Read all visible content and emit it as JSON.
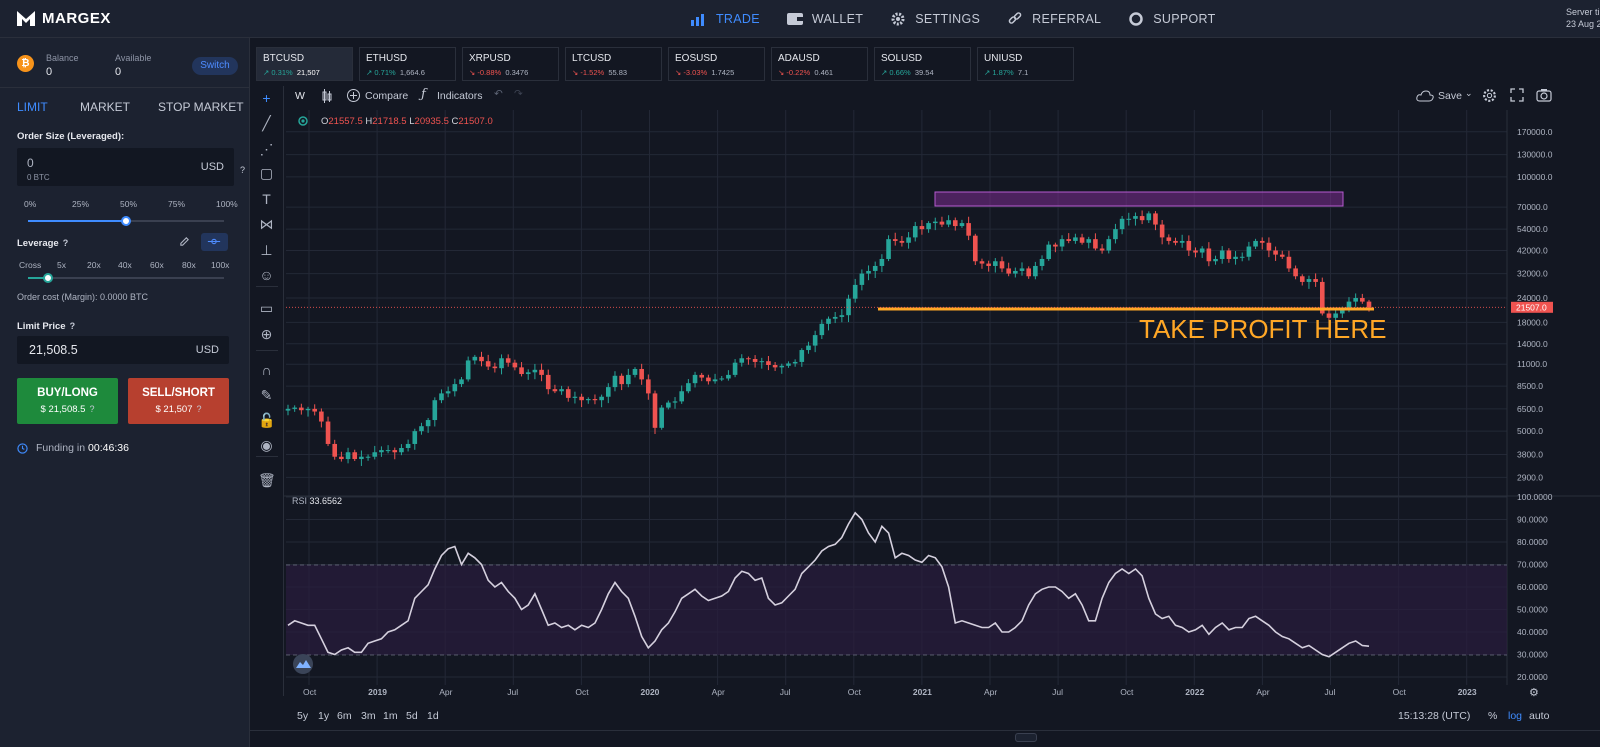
{
  "brand": {
    "name": "MARGEX"
  },
  "nav": [
    {
      "label": "TRADE",
      "icon": "bar-chart-icon",
      "active": true
    },
    {
      "label": "WALLET",
      "icon": "wallet-icon"
    },
    {
      "label": "SETTINGS",
      "icon": "gear-icon"
    },
    {
      "label": "REFERRAL",
      "icon": "link-icon"
    },
    {
      "label": "SUPPORT",
      "icon": "lifebuoy-icon"
    }
  ],
  "server": {
    "line1": "Server ti",
    "line2": "23 Aug 2"
  },
  "account": {
    "balance_label": "Balance",
    "balance_value": "0",
    "available_label": "Available",
    "available_value": "0",
    "switch_label": "Switch"
  },
  "order_tabs": [
    "LIMIT",
    "MARKET",
    "STOP MARKET"
  ],
  "order": {
    "size_label": "Order Size (Leveraged):",
    "size_value": "0",
    "size_sub": "0 BTC",
    "size_unit": "USD",
    "size_ticks": [
      "0%",
      "25%",
      "50%",
      "75%",
      "100%"
    ],
    "size_percent": 50,
    "leverage_label": "Leverage",
    "leverage_ticks": [
      "Cross",
      "5x",
      "20x",
      "40x",
      "60x",
      "80x",
      "100x"
    ],
    "leverage_position": 1,
    "cost_text": "Order cost (Margin): 0.0000 BTC",
    "limit_label": "Limit Price",
    "limit_value": "21,508.5",
    "limit_unit": "USD",
    "buy_label": "BUY/LONG",
    "buy_price": "$ 21,508.5",
    "sell_label": "SELL/SHORT",
    "sell_price": "$ 21,507",
    "funding_label": "Funding in",
    "funding_time": "00:46:36",
    "qmark": "?"
  },
  "symbols": [
    {
      "name": "BTCUSD",
      "change": "0.31%",
      "price": "21,507",
      "dir": "up"
    },
    {
      "name": "ETHUSD",
      "change": "0.71%",
      "price": "1,664.6",
      "dir": "up"
    },
    {
      "name": "XRPUSD",
      "change": "-0.88%",
      "price": "0.3476",
      "dir": "dn"
    },
    {
      "name": "LTCUSD",
      "change": "-1.52%",
      "price": "55.83",
      "dir": "dn"
    },
    {
      "name": "EOSUSD",
      "change": "-3.03%",
      "price": "1.7425",
      "dir": "dn"
    },
    {
      "name": "ADAUSD",
      "change": "-0.22%",
      "price": "0.461",
      "dir": "dn"
    },
    {
      "name": "SOLUSD",
      "change": "0.66%",
      "price": "39.54",
      "dir": "up"
    },
    {
      "name": "UNIUSD",
      "change": "1.87%",
      "price": "7.1",
      "dir": "up"
    }
  ],
  "toolbar": {
    "interval": "W",
    "compare": "Compare",
    "indicators": "Indicators",
    "save": "Save"
  },
  "ohlc": {
    "o_label": "O",
    "o": "21557.5",
    "h_label": "H",
    "h": "21718.5",
    "l_label": "L",
    "l": "20935.5",
    "c_label": "C",
    "c": "21507.0"
  },
  "rsi": {
    "label": "RSI",
    "value": "33.6562"
  },
  "annotation": "TAKE PROFIT HERE",
  "timeframes": [
    "5y",
    "1y",
    "6m",
    "3m",
    "1m",
    "5d",
    "1d"
  ],
  "clock": "15:13:28 (UTC)",
  "scale_opts": [
    "%",
    "log",
    "auto"
  ],
  "chart_data": {
    "type": "candlestick",
    "scale": "log",
    "price_axis": [
      "170000.0",
      "130000.0",
      "100000.0",
      "70000.0",
      "54000.0",
      "42000.0",
      "32000.0",
      "24000.0",
      "18000.0",
      "14000.0",
      "11000.0",
      "8500.0",
      "6500.0",
      "5000.0",
      "3800.0",
      "2900.0"
    ],
    "rsi_axis": [
      "100.0000",
      "90.0000",
      "80.0000",
      "70.0000",
      "60.0000",
      "50.0000",
      "40.0000",
      "30.0000",
      "20.0000"
    ],
    "time_axis": [
      "Oct",
      "2019",
      "Apr",
      "Jul",
      "Oct",
      "2020",
      "Apr",
      "Jul",
      "Oct",
      "2021",
      "Apr",
      "Jul",
      "Oct",
      "2022",
      "Apr",
      "Jul",
      "Oct",
      "2023"
    ],
    "last_price": "21507.0",
    "closes": [
      6500,
      6600,
      6400,
      6500,
      6300,
      5600,
      4300,
      3700,
      3600,
      3900,
      3600,
      3700,
      3700,
      3900,
      4000,
      4000,
      3900,
      4100,
      4300,
      5000,
      5300,
      5700,
      7200,
      7800,
      8000,
      8700,
      9200,
      11500,
      12000,
      11400,
      10700,
      10500,
      11800,
      11200,
      10600,
      9800,
      10000,
      10300,
      9700,
      8200,
      8000,
      8200,
      7400,
      7500,
      7200,
      7300,
      7200,
      7500,
      8400,
      9600,
      8700,
      9700,
      10400,
      9200,
      7800,
      5200,
      6600,
      7000,
      7100,
      8000,
      8800,
      9700,
      9400,
      9000,
      9200,
      9300,
      9700,
      11200,
      11800,
      11700,
      11300,
      11400,
      10900,
      10600,
      10800,
      11100,
      11300,
      13000,
      13700,
      15500,
      17700,
      18800,
      19200,
      19600,
      23800,
      28000,
      32000,
      33000,
      35000,
      38000,
      48000,
      47000,
      46000,
      49000,
      56000,
      54000,
      58000,
      59000,
      57000,
      60000,
      56000,
      58000,
      50000,
      37000,
      36000,
      35000,
      37000,
      34000,
      32000,
      33000,
      34000,
      31000,
      35000,
      38000,
      45000,
      44000,
      48000,
      47000,
      49000,
      46000,
      48000,
      43000,
      42000,
      48000,
      54000,
      61000,
      61000,
      63000,
      60000,
      65000,
      57000,
      49000,
      47000,
      46000,
      47000,
      42000,
      41000,
      43000,
      37000,
      38000,
      42000,
      38000,
      39000,
      39000,
      44000,
      47000,
      46000,
      42000,
      40000,
      39000,
      34000,
      31000,
      29000,
      30000,
      29000,
      20000,
      19000,
      20000,
      21000,
      23000,
      24000,
      23000,
      21500
    ],
    "rsi": [
      43,
      45,
      44,
      43,
      43,
      37,
      31,
      30,
      32,
      33,
      31,
      31,
      35,
      36,
      37,
      40,
      41,
      43,
      45,
      55,
      58,
      61,
      68,
      74,
      77,
      78,
      70,
      75,
      73,
      70,
      63,
      60,
      62,
      58,
      55,
      50,
      52,
      57,
      50,
      43,
      44,
      42,
      43,
      41,
      43,
      42,
      44,
      50,
      57,
      62,
      58,
      55,
      47,
      38,
      33,
      36,
      41,
      44,
      49,
      55,
      57,
      59,
      56,
      54,
      55,
      56,
      58,
      64,
      67,
      66,
      63,
      64,
      55,
      52,
      53,
      56,
      59,
      66,
      69,
      72,
      76,
      78,
      79,
      82,
      88,
      93,
      90,
      84,
      80,
      87,
      84,
      73,
      75,
      74,
      72,
      71,
      74,
      73,
      69,
      60,
      44,
      45,
      44,
      43,
      42,
      42,
      44,
      40,
      40,
      42,
      45,
      52,
      57,
      59,
      60,
      60,
      58,
      55,
      57,
      52,
      45,
      45,
      55,
      62,
      66,
      68,
      66,
      68,
      65,
      55,
      48,
      46,
      47,
      43,
      42,
      40,
      41,
      43,
      39,
      42,
      44,
      41,
      42,
      42,
      46,
      47,
      45,
      43,
      40,
      38,
      37,
      35,
      33,
      34,
      32,
      30,
      29,
      31,
      33,
      35,
      36,
      34,
      33.7
    ]
  }
}
